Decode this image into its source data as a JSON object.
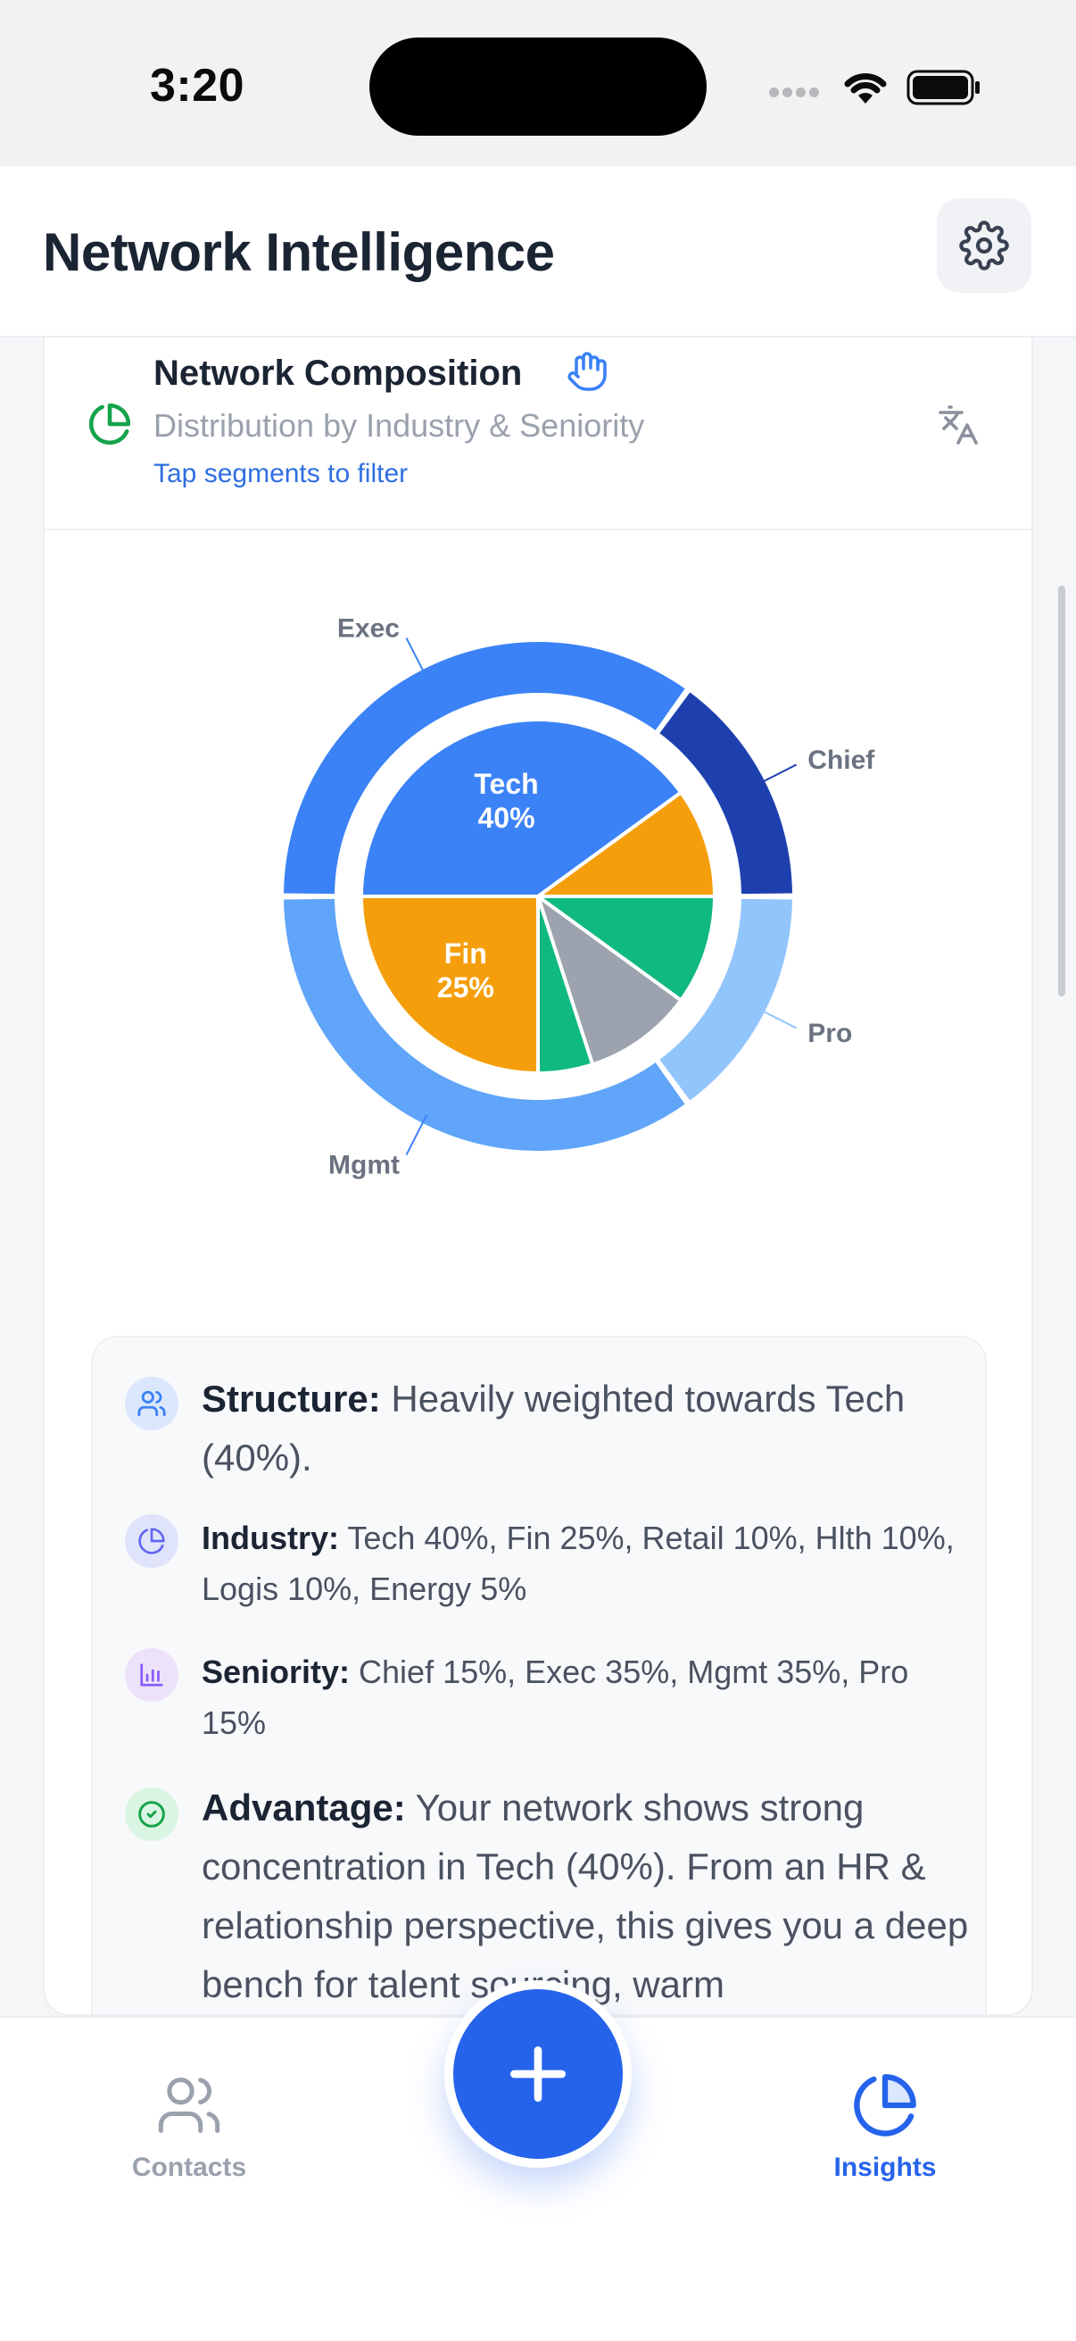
{
  "status_bar": {
    "time": "3:20"
  },
  "header": {
    "title": "Network Intelligence"
  },
  "card": {
    "title": "Network Composition",
    "subtitle": "Distribution by Industry & Seniority",
    "hint": "Tap segments to filter"
  },
  "chart_data": {
    "type": "pie",
    "inner_ring": {
      "name": "Industry",
      "slices": [
        {
          "label": "Tech",
          "value": 40,
          "display": "40%",
          "color": "#3b82f6"
        },
        {
          "label": "Retail",
          "value": 10,
          "color": "#f59e0b"
        },
        {
          "label": "Hlth",
          "value": 10,
          "color": "#10b981"
        },
        {
          "label": "Logis",
          "value": 10,
          "color": "#9ca3af"
        },
        {
          "label": "Energy",
          "value": 5,
          "color": "#10b981"
        },
        {
          "label": "Fin",
          "value": 25,
          "display": "25%",
          "color": "#f59e0b"
        }
      ]
    },
    "outer_ring": {
      "name": "Seniority",
      "slices": [
        {
          "label": "Chief",
          "value": 15,
          "color": "#1e40af"
        },
        {
          "label": "Pro",
          "value": 15,
          "color": "#93c5fd"
        },
        {
          "label": "Mgmt",
          "value": 35,
          "color": "#60a5fa"
        },
        {
          "label": "Exec",
          "value": 35,
          "color": "#3b82f6"
        }
      ]
    }
  },
  "insights": [
    {
      "label": "Structure:",
      "text": " Heavily weighted towards Tech (40%).",
      "icon": "users-icon",
      "color": "#3b82f6"
    },
    {
      "label": "Industry:",
      "text": " Tech 40%, Fin 25%, Retail 10%, Hlth 10%, Logis 10%, Energy 5%",
      "icon": "pie-chart-icon",
      "color": "#6366f1"
    },
    {
      "label": "Seniority:",
      "text": " Chief 15%, Exec 35%, Mgmt 35%, Pro 15%",
      "icon": "bar-chart-icon",
      "color": "#8b5cf6"
    },
    {
      "label": "Advantage:",
      "text": " Your network shows strong concentration in Tech (40%). From an HR & relationship perspective, this gives you a deep bench for talent sourcing, warm",
      "icon": "check-circle-icon",
      "color": "#16a34a"
    }
  ],
  "nav": {
    "contacts": "Contacts",
    "insights": "Insights"
  }
}
